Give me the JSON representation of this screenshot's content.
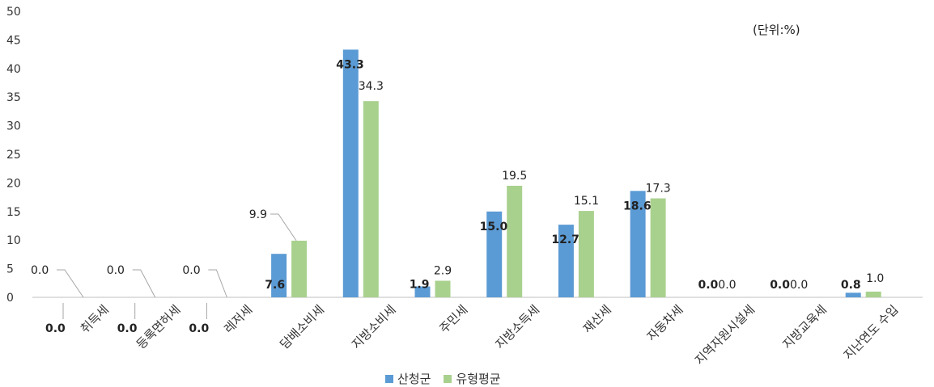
{
  "chart_data": {
    "type": "bar",
    "unit_note": "(단위:%)",
    "categories": [
      "취득세",
      "등록면허세",
      "레저세",
      "담배소비세",
      "지방소비세",
      "주민세",
      "지방소득세",
      "재산세",
      "자동차세",
      "지역자원시설세",
      "지방교육세",
      "지난연도 수입"
    ],
    "series": [
      {
        "name": "산청군",
        "color": "#5b9bd5",
        "values": [
          0.0,
          0.0,
          0.0,
          7.6,
          43.3,
          1.9,
          15.0,
          12.7,
          18.6,
          0.0,
          0.0,
          0.8
        ],
        "labels": [
          "0.0",
          "0.0",
          "0.0",
          "7.6",
          "43.3",
          "1.9",
          "15.0",
          "12.7",
          "18.6",
          "0.0",
          "0.0",
          "0.8"
        ]
      },
      {
        "name": "유형평균",
        "color": "#a9d18e",
        "values": [
          0.0,
          0.0,
          0.0,
          9.9,
          34.3,
          2.9,
          19.5,
          15.1,
          17.3,
          0.0,
          0.0,
          1.0
        ],
        "labels": [
          "0.0",
          "0.0",
          "0.0",
          "9.9",
          "34.3",
          "2.9",
          "19.5",
          "15.1",
          "17.3",
          "0.0",
          "0.0",
          "1.0"
        ]
      }
    ],
    "ylim": [
      0,
      50
    ],
    "yticks": [
      "0",
      "5",
      "10",
      "15",
      "20",
      "25",
      "30",
      "35",
      "40",
      "45",
      "50"
    ],
    "grid": false,
    "legend": "bottom"
  }
}
